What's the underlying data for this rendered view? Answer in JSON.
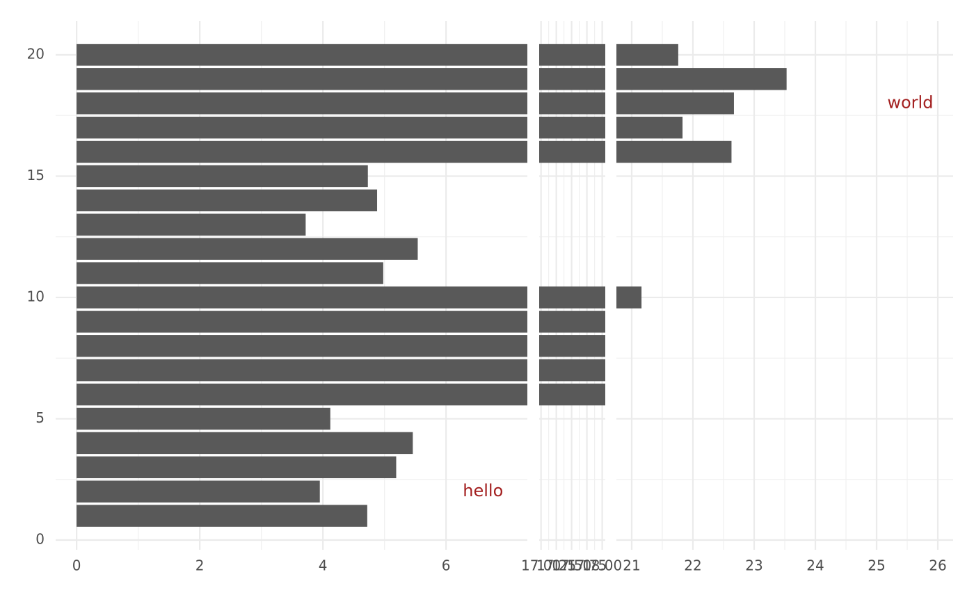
{
  "chart_data": {
    "type": "bar",
    "orientation": "horizontal",
    "color": "#595959",
    "grid": true,
    "y": [
      1,
      2,
      3,
      4,
      5,
      6,
      7,
      8,
      9,
      10,
      11,
      12,
      13,
      14,
      15,
      16,
      17,
      18,
      19,
      20
    ],
    "values": [
      4.72,
      3.95,
      5.19,
      5.46,
      4.12,
      20,
      20,
      20,
      20,
      21.16,
      4.98,
      5.54,
      3.72,
      4.88,
      4.73,
      22.63,
      21.83,
      22.67,
      23.53,
      21.76
    ],
    "ylim": [
      -0.4,
      21.4
    ],
    "yticks": [
      0,
      5,
      10,
      15,
      20
    ],
    "panels": [
      {
        "xlim": [
          -0.34,
          7.32
        ],
        "xticks": [
          0,
          2,
          4,
          6
        ]
      },
      {
        "xlim": [
          16.97,
          18.05
        ],
        "xticks": [
          {
            "value": 17,
            "label": "17.00"
          },
          {
            "value": 17.25,
            "label": "17.25"
          },
          {
            "value": 17.5,
            "label": "17.50"
          },
          {
            "value": 17.75,
            "label": "17.75"
          },
          {
            "value": 18,
            "label": "18.00"
          }
        ]
      },
      {
        "xlim": [
          20.75,
          26.25
        ],
        "xticks": [
          21,
          22,
          23,
          24,
          25,
          26
        ]
      }
    ],
    "annotations": [
      {
        "text": "hello",
        "x": 6.6,
        "y": 2,
        "color": "#a31f1f"
      },
      {
        "text": "world",
        "x": 25.55,
        "y": 18,
        "color": "#a31f1f"
      }
    ]
  }
}
